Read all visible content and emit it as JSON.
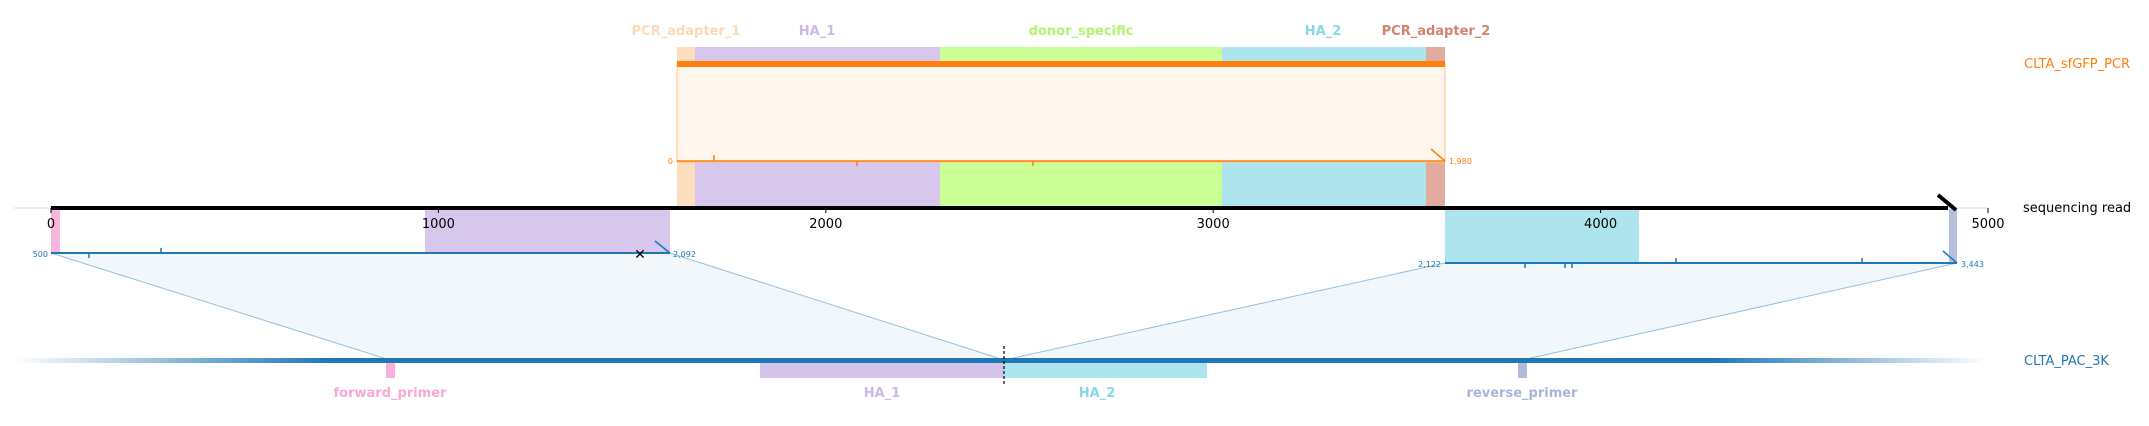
{
  "figure": {
    "top_track": {
      "name": "CLTA_sfGFP_PCR",
      "color": "#ff7f0e",
      "start_label": "0",
      "end_label": "1,980",
      "features": [
        {
          "name": "PCR_adapter_1",
          "color": "#fdd9b4"
        },
        {
          "name": "HA_1",
          "color": "#cdb9e8"
        },
        {
          "name": "donor_specific",
          "color": "#c3ff8a"
        },
        {
          "name": "HA_2",
          "color": "#a4e1ec"
        },
        {
          "name": "PCR_adapter_2",
          "color": "#dc9c8c"
        }
      ]
    },
    "read": {
      "name": "sequencing read",
      "axis_ticks": [
        {
          "value": 0,
          "label": "0"
        },
        {
          "value": 1000,
          "label": "1000"
        },
        {
          "value": 2000,
          "label": "2000"
        },
        {
          "value": 3000,
          "label": "3000"
        },
        {
          "value": 4000,
          "label": "4000"
        },
        {
          "value": 5000,
          "label": "5000"
        }
      ],
      "left_alignment": {
        "ref_start_label": "500",
        "ref_end_label": "2,092"
      },
      "right_alignment": {
        "ref_start_label": "2,122",
        "ref_end_label": "3,443"
      }
    },
    "bottom_track": {
      "name": "CLTA_PAC_3K",
      "color": "#1f77b4",
      "features": [
        {
          "name": "forward_primer",
          "color": "#f7a8d8"
        },
        {
          "name": "HA_1",
          "color": "#cdb9e8"
        },
        {
          "name": "HA_2",
          "color": "#a4e1ec"
        },
        {
          "name": "reverse_primer",
          "color": "#a9b4d8"
        }
      ]
    }
  }
}
